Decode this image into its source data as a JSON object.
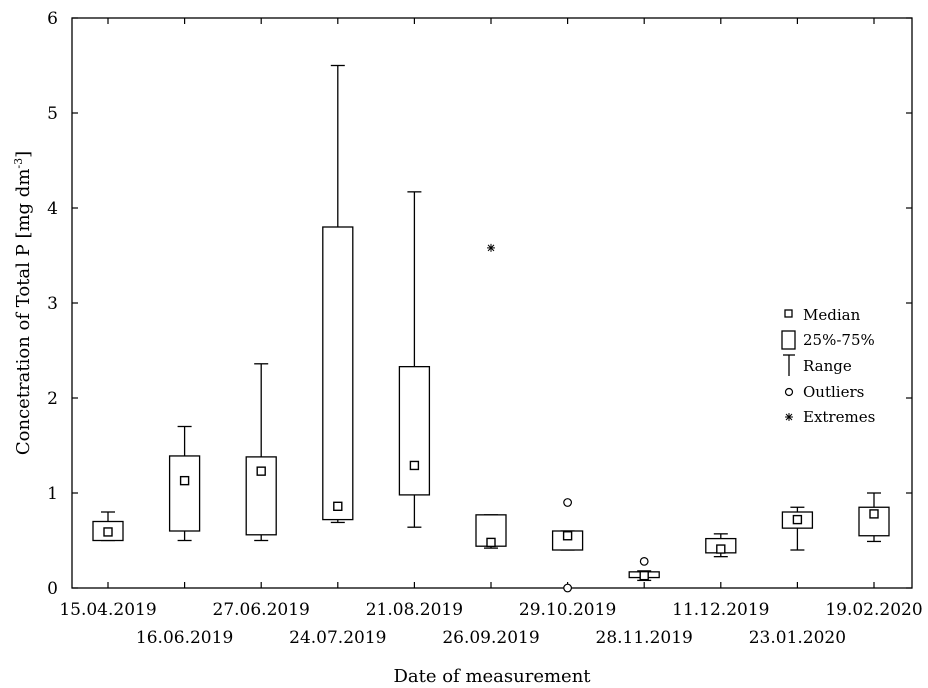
{
  "chart_data": {
    "type": "box",
    "xlabel": "Date of measurement",
    "ylabel": "Concetration of Total P [mg dm",
    "ylabel_sup": "-3",
    "ylabel_end": "]",
    "ylim": [
      0,
      6
    ],
    "yticks": [
      "0",
      "1",
      "2",
      "3",
      "4",
      "5",
      "6"
    ],
    "grid": false,
    "legend_position": "right",
    "legend": {
      "median": "Median",
      "box": "25%-75%",
      "range": "Range",
      "outliers": "Outliers",
      "extremes": "Extremes"
    },
    "categories": [
      "15.04.2019",
      "16.06.2019",
      "27.06.2019",
      "24.07.2019",
      "21.08.2019",
      "26.09.2019",
      "29.10.2019",
      "28.11.2019",
      "11.12.2019",
      "23.01.2020",
      "19.02.2020"
    ],
    "boxes": [
      {
        "min": 0.5,
        "q1": 0.5,
        "median": 0.59,
        "q3": 0.7,
        "max": 0.8,
        "outliers": [],
        "extremes": []
      },
      {
        "min": 0.5,
        "q1": 0.6,
        "median": 1.13,
        "q3": 1.39,
        "max": 1.7,
        "outliers": [],
        "extremes": []
      },
      {
        "min": 0.5,
        "q1": 0.56,
        "median": 1.23,
        "q3": 1.38,
        "max": 2.36,
        "outliers": [],
        "extremes": []
      },
      {
        "min": 0.69,
        "q1": 0.72,
        "median": 0.86,
        "q3": 3.8,
        "max": 5.5,
        "outliers": [],
        "extremes": []
      },
      {
        "min": 0.64,
        "q1": 0.98,
        "median": 1.29,
        "q3": 2.33,
        "max": 4.17,
        "outliers": [],
        "extremes": []
      },
      {
        "min": 0.42,
        "q1": 0.44,
        "median": 0.48,
        "q3": 0.77,
        "max": 0.77,
        "outliers": [],
        "extremes": [
          3.58
        ]
      },
      {
        "min": 0.4,
        "q1": 0.4,
        "median": 0.55,
        "q3": 0.6,
        "max": 0.6,
        "outliers": [
          0.9,
          0.0
        ],
        "extremes": []
      },
      {
        "min": 0.08,
        "q1": 0.11,
        "median": 0.13,
        "q3": 0.17,
        "max": 0.18,
        "outliers": [
          0.28
        ],
        "extremes": []
      },
      {
        "min": 0.33,
        "q1": 0.37,
        "median": 0.41,
        "q3": 0.52,
        "max": 0.57,
        "outliers": [],
        "extremes": []
      },
      {
        "min": 0.4,
        "q1": 0.63,
        "median": 0.72,
        "q3": 0.8,
        "max": 0.85,
        "outliers": [],
        "extremes": []
      },
      {
        "min": 0.49,
        "q1": 0.55,
        "median": 0.78,
        "q3": 0.85,
        "max": 1.0,
        "outliers": [],
        "extremes": []
      }
    ]
  }
}
